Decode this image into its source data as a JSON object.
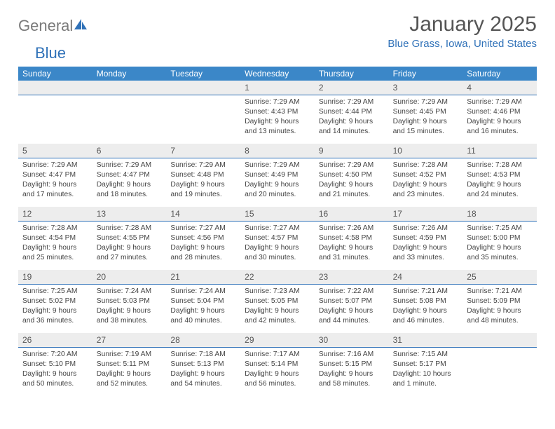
{
  "logo": {
    "general": "General",
    "blue": "Blue"
  },
  "title": "January 2025",
  "location": "Blue Grass, Iowa, United States",
  "header_color": "#3b87c8",
  "accent_color": "#2f71b8",
  "day_bg": "#ededed",
  "text_color": "#444444",
  "day_names": [
    "Sunday",
    "Monday",
    "Tuesday",
    "Wednesday",
    "Thursday",
    "Friday",
    "Saturday"
  ],
  "weeks": [
    [
      null,
      null,
      null,
      {
        "n": "1",
        "sr": "Sunrise: 7:29 AM",
        "ss": "Sunset: 4:43 PM",
        "dl1": "Daylight: 9 hours",
        "dl2": "and 13 minutes."
      },
      {
        "n": "2",
        "sr": "Sunrise: 7:29 AM",
        "ss": "Sunset: 4:44 PM",
        "dl1": "Daylight: 9 hours",
        "dl2": "and 14 minutes."
      },
      {
        "n": "3",
        "sr": "Sunrise: 7:29 AM",
        "ss": "Sunset: 4:45 PM",
        "dl1": "Daylight: 9 hours",
        "dl2": "and 15 minutes."
      },
      {
        "n": "4",
        "sr": "Sunrise: 7:29 AM",
        "ss": "Sunset: 4:46 PM",
        "dl1": "Daylight: 9 hours",
        "dl2": "and 16 minutes."
      }
    ],
    [
      {
        "n": "5",
        "sr": "Sunrise: 7:29 AM",
        "ss": "Sunset: 4:47 PM",
        "dl1": "Daylight: 9 hours",
        "dl2": "and 17 minutes."
      },
      {
        "n": "6",
        "sr": "Sunrise: 7:29 AM",
        "ss": "Sunset: 4:47 PM",
        "dl1": "Daylight: 9 hours",
        "dl2": "and 18 minutes."
      },
      {
        "n": "7",
        "sr": "Sunrise: 7:29 AM",
        "ss": "Sunset: 4:48 PM",
        "dl1": "Daylight: 9 hours",
        "dl2": "and 19 minutes."
      },
      {
        "n": "8",
        "sr": "Sunrise: 7:29 AM",
        "ss": "Sunset: 4:49 PM",
        "dl1": "Daylight: 9 hours",
        "dl2": "and 20 minutes."
      },
      {
        "n": "9",
        "sr": "Sunrise: 7:29 AM",
        "ss": "Sunset: 4:50 PM",
        "dl1": "Daylight: 9 hours",
        "dl2": "and 21 minutes."
      },
      {
        "n": "10",
        "sr": "Sunrise: 7:28 AM",
        "ss": "Sunset: 4:52 PM",
        "dl1": "Daylight: 9 hours",
        "dl2": "and 23 minutes."
      },
      {
        "n": "11",
        "sr": "Sunrise: 7:28 AM",
        "ss": "Sunset: 4:53 PM",
        "dl1": "Daylight: 9 hours",
        "dl2": "and 24 minutes."
      }
    ],
    [
      {
        "n": "12",
        "sr": "Sunrise: 7:28 AM",
        "ss": "Sunset: 4:54 PM",
        "dl1": "Daylight: 9 hours",
        "dl2": "and 25 minutes."
      },
      {
        "n": "13",
        "sr": "Sunrise: 7:28 AM",
        "ss": "Sunset: 4:55 PM",
        "dl1": "Daylight: 9 hours",
        "dl2": "and 27 minutes."
      },
      {
        "n": "14",
        "sr": "Sunrise: 7:27 AM",
        "ss": "Sunset: 4:56 PM",
        "dl1": "Daylight: 9 hours",
        "dl2": "and 28 minutes."
      },
      {
        "n": "15",
        "sr": "Sunrise: 7:27 AM",
        "ss": "Sunset: 4:57 PM",
        "dl1": "Daylight: 9 hours",
        "dl2": "and 30 minutes."
      },
      {
        "n": "16",
        "sr": "Sunrise: 7:26 AM",
        "ss": "Sunset: 4:58 PM",
        "dl1": "Daylight: 9 hours",
        "dl2": "and 31 minutes."
      },
      {
        "n": "17",
        "sr": "Sunrise: 7:26 AM",
        "ss": "Sunset: 4:59 PM",
        "dl1": "Daylight: 9 hours",
        "dl2": "and 33 minutes."
      },
      {
        "n": "18",
        "sr": "Sunrise: 7:25 AM",
        "ss": "Sunset: 5:00 PM",
        "dl1": "Daylight: 9 hours",
        "dl2": "and 35 minutes."
      }
    ],
    [
      {
        "n": "19",
        "sr": "Sunrise: 7:25 AM",
        "ss": "Sunset: 5:02 PM",
        "dl1": "Daylight: 9 hours",
        "dl2": "and 36 minutes."
      },
      {
        "n": "20",
        "sr": "Sunrise: 7:24 AM",
        "ss": "Sunset: 5:03 PM",
        "dl1": "Daylight: 9 hours",
        "dl2": "and 38 minutes."
      },
      {
        "n": "21",
        "sr": "Sunrise: 7:24 AM",
        "ss": "Sunset: 5:04 PM",
        "dl1": "Daylight: 9 hours",
        "dl2": "and 40 minutes."
      },
      {
        "n": "22",
        "sr": "Sunrise: 7:23 AM",
        "ss": "Sunset: 5:05 PM",
        "dl1": "Daylight: 9 hours",
        "dl2": "and 42 minutes."
      },
      {
        "n": "23",
        "sr": "Sunrise: 7:22 AM",
        "ss": "Sunset: 5:07 PM",
        "dl1": "Daylight: 9 hours",
        "dl2": "and 44 minutes."
      },
      {
        "n": "24",
        "sr": "Sunrise: 7:21 AM",
        "ss": "Sunset: 5:08 PM",
        "dl1": "Daylight: 9 hours",
        "dl2": "and 46 minutes."
      },
      {
        "n": "25",
        "sr": "Sunrise: 7:21 AM",
        "ss": "Sunset: 5:09 PM",
        "dl1": "Daylight: 9 hours",
        "dl2": "and 48 minutes."
      }
    ],
    [
      {
        "n": "26",
        "sr": "Sunrise: 7:20 AM",
        "ss": "Sunset: 5:10 PM",
        "dl1": "Daylight: 9 hours",
        "dl2": "and 50 minutes."
      },
      {
        "n": "27",
        "sr": "Sunrise: 7:19 AM",
        "ss": "Sunset: 5:11 PM",
        "dl1": "Daylight: 9 hours",
        "dl2": "and 52 minutes."
      },
      {
        "n": "28",
        "sr": "Sunrise: 7:18 AM",
        "ss": "Sunset: 5:13 PM",
        "dl1": "Daylight: 9 hours",
        "dl2": "and 54 minutes."
      },
      {
        "n": "29",
        "sr": "Sunrise: 7:17 AM",
        "ss": "Sunset: 5:14 PM",
        "dl1": "Daylight: 9 hours",
        "dl2": "and 56 minutes."
      },
      {
        "n": "30",
        "sr": "Sunrise: 7:16 AM",
        "ss": "Sunset: 5:15 PM",
        "dl1": "Daylight: 9 hours",
        "dl2": "and 58 minutes."
      },
      {
        "n": "31",
        "sr": "Sunrise: 7:15 AM",
        "ss": "Sunset: 5:17 PM",
        "dl1": "Daylight: 10 hours",
        "dl2": "and 1 minute."
      },
      null
    ]
  ]
}
